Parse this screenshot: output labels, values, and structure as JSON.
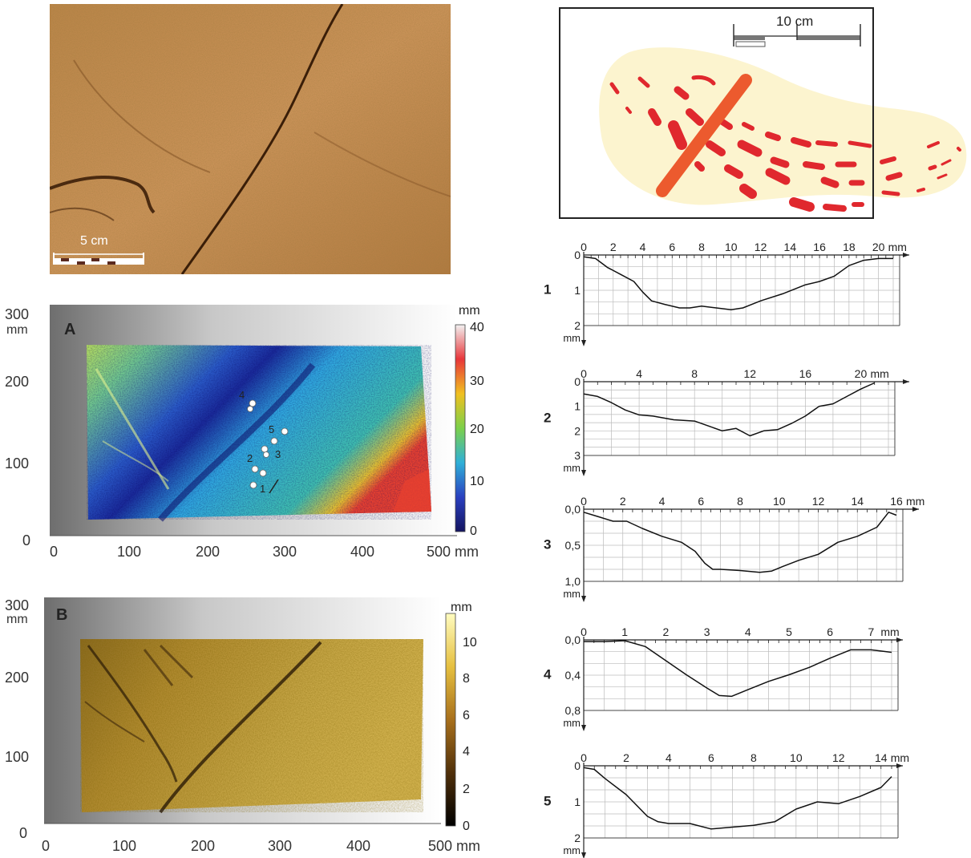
{
  "photo": {
    "scale_label": "5 cm"
  },
  "sketch": {
    "scale_label": "10 cm"
  },
  "panelA": {
    "letter": "A",
    "y_ticks": [
      "300",
      "200",
      "100",
      "0"
    ],
    "y_unit": "mm",
    "x_ticks": [
      "0",
      "100",
      "200",
      "300",
      "400",
      "500 mm"
    ],
    "colorbar_unit": "mm",
    "colorbar_ticks": [
      "40",
      "30",
      "20",
      "10",
      "0"
    ],
    "colorbar_colors": [
      "#f2f2f2",
      "#e8363a",
      "#f0c020",
      "#7cd04a",
      "#2fb0d8",
      "#2a40c0",
      "#141460"
    ],
    "markers": [
      "1",
      "2",
      "3",
      "4",
      "5"
    ]
  },
  "panelB": {
    "letter": "B",
    "y_ticks": [
      "300",
      "200",
      "100",
      "0"
    ],
    "y_unit": "mm",
    "x_ticks": [
      "0",
      "100",
      "200",
      "300",
      "400",
      "500 mm"
    ],
    "colorbar_unit": "mm",
    "colorbar_ticks": [
      "10",
      "8",
      "6",
      "4",
      "2",
      "0"
    ],
    "colorbar_colors": [
      "#fffcc0",
      "#e6c040",
      "#a8701c",
      "#50300a",
      "#000000"
    ]
  },
  "chart_data": [
    {
      "type": "line",
      "profile_label": "1",
      "x_tick_labels": [
        "0",
        "2",
        "4",
        "6",
        "8",
        "10",
        "12",
        "14",
        "16",
        "18",
        "20"
      ],
      "x_unit": "mm",
      "y_tick_labels": [
        "0",
        "1",
        "2"
      ],
      "y_unit": "mm",
      "xlim": [
        0,
        21
      ],
      "ylim": [
        0,
        2
      ],
      "x": [
        0,
        0.8,
        1.6,
        2.5,
        3.4,
        4,
        4.6,
        5.5,
        6.5,
        7.2,
        8,
        9,
        10,
        10.8,
        12,
        13.5,
        15,
        16,
        17,
        18,
        19,
        20,
        21
      ],
      "y": [
        0.05,
        0.1,
        0.35,
        0.55,
        0.75,
        1.05,
        1.3,
        1.4,
        1.5,
        1.5,
        1.45,
        1.5,
        1.55,
        1.5,
        1.3,
        1.1,
        0.85,
        0.75,
        0.6,
        0.3,
        0.15,
        0.1,
        0.1
      ]
    },
    {
      "type": "line",
      "profile_label": "2",
      "x_tick_labels": [
        "0",
        "4",
        "8",
        "12",
        "16",
        "20"
      ],
      "x_unit": "mm",
      "y_tick_labels": [
        "0",
        "1",
        "2",
        "3"
      ],
      "y_unit": "mm",
      "xlim": [
        0,
        22
      ],
      "ylim": [
        0,
        3
      ],
      "x": [
        0,
        1,
        2,
        3,
        4,
        5,
        6.5,
        8,
        9,
        10,
        11,
        12,
        13,
        14,
        15,
        16,
        17,
        18,
        19,
        20,
        21
      ],
      "y": [
        0.5,
        0.6,
        0.85,
        1.15,
        1.35,
        1.4,
        1.55,
        1.6,
        1.8,
        2.0,
        1.9,
        2.2,
        2.0,
        1.95,
        1.7,
        1.4,
        1.0,
        0.9,
        0.6,
        0.3,
        0.05
      ]
    },
    {
      "type": "line",
      "profile_label": "3",
      "x_tick_labels": [
        "0",
        "2",
        "4",
        "6",
        "8",
        "10",
        "12",
        "14",
        "16"
      ],
      "x_unit": "mm",
      "y_tick_labels": [
        "0,0",
        "0,5",
        "1,0"
      ],
      "y_unit": "mm",
      "xlim": [
        0,
        16
      ],
      "ylim": [
        0,
        1.2
      ],
      "x": [
        0,
        0.7,
        1.5,
        2.2,
        3,
        4,
        5,
        5.7,
        6.2,
        6.6,
        7,
        8,
        9,
        9.6,
        10.2,
        11,
        12,
        13,
        14,
        15,
        15.6,
        16
      ],
      "y": [
        0.05,
        0.12,
        0.2,
        0.2,
        0.32,
        0.45,
        0.55,
        0.7,
        0.9,
        1.0,
        1.0,
        1.02,
        1.05,
        1.03,
        0.95,
        0.85,
        0.75,
        0.55,
        0.45,
        0.3,
        0.05,
        0.1
      ]
    },
    {
      "type": "line",
      "profile_label": "4",
      "x_tick_labels": [
        "0",
        "1",
        "2",
        "3",
        "4",
        "5",
        "6",
        "7"
      ],
      "x_unit": "mm",
      "y_tick_labels": [
        "0,0",
        "0,4",
        "0,8"
      ],
      "y_unit": "mm",
      "xlim": [
        0,
        7.5
      ],
      "ylim": [
        0,
        0.85
      ],
      "x": [
        0,
        0.5,
        1,
        1.5,
        2,
        2.5,
        3,
        3.3,
        3.6,
        4,
        4.5,
        5,
        5.5,
        6,
        6.5,
        7,
        7.5
      ],
      "y": [
        0.02,
        0.02,
        0.01,
        0.08,
        0.25,
        0.42,
        0.58,
        0.67,
        0.68,
        0.6,
        0.5,
        0.42,
        0.33,
        0.22,
        0.12,
        0.12,
        0.15
      ]
    },
    {
      "type": "line",
      "profile_label": "5",
      "x_tick_labels": [
        "0",
        "2",
        "4",
        "6",
        "8",
        "10",
        "12",
        "14"
      ],
      "x_unit": "mm",
      "y_tick_labels": [
        "0",
        "1",
        "2"
      ],
      "y_unit": "mm",
      "xlim": [
        0,
        14.5
      ],
      "ylim": [
        0,
        2
      ],
      "x": [
        0,
        0.5,
        1,
        2,
        3,
        3.5,
        4,
        5,
        6,
        7,
        8,
        9,
        10,
        11,
        12,
        13,
        14,
        14.5
      ],
      "y": [
        0.05,
        0.1,
        0.35,
        0.8,
        1.4,
        1.55,
        1.6,
        1.6,
        1.75,
        1.7,
        1.65,
        1.55,
        1.2,
        1.0,
        1.05,
        0.85,
        0.6,
        0.3
      ]
    }
  ]
}
